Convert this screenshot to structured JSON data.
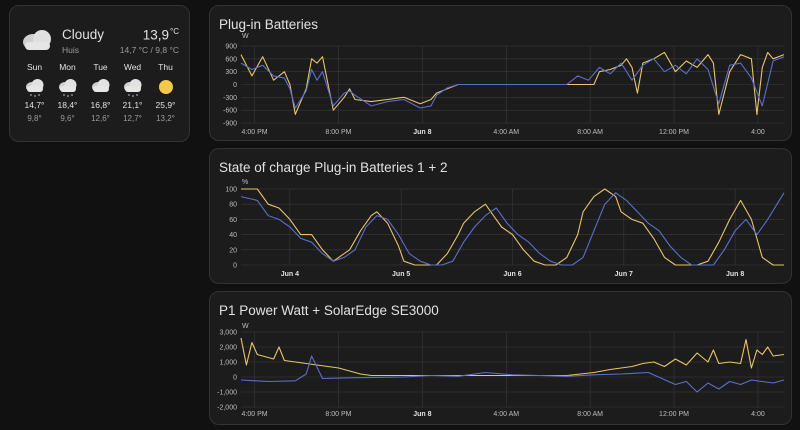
{
  "colors": {
    "yellow": "#e9c46a",
    "blue": "#5a6fcc",
    "grid": "#3a3a3a"
  },
  "weather": {
    "condition": "Cloudy",
    "location": "Huis",
    "temperature": "13,9",
    "unit": "°C",
    "high_low": "14,7 °C / 9,8 °C",
    "forecast": [
      {
        "day": "Sun",
        "icon": "snowy-cloud-icon",
        "high": "14,7°",
        "low": "9,8°"
      },
      {
        "day": "Mon",
        "icon": "snowy-cloud-icon",
        "high": "18,4°",
        "low": "9,6°"
      },
      {
        "day": "Tue",
        "icon": "cloudy-icon",
        "high": "16,8°",
        "low": "12,6°"
      },
      {
        "day": "Wed",
        "icon": "snowy-cloud-icon",
        "high": "21,1°",
        "low": "12,7°"
      },
      {
        "day": "Thu",
        "icon": "sunny-icon",
        "high": "25,9°",
        "low": "13,2°"
      }
    ]
  },
  "charts": [
    {
      "title": "Plug-in Batteries"
    },
    {
      "title": "State of charge Plug-in Batteries 1 + 2"
    },
    {
      "title": "P1 Power Watt + SolarEdge SE3000"
    }
  ],
  "chart_data": [
    {
      "type": "line",
      "unit": "W",
      "ylim": [
        -900,
        900
      ],
      "yticks": [
        "900",
        "600",
        "300",
        "0",
        "-300",
        "-600",
        "-900"
      ],
      "xticks": [
        {
          "label": "4:00 PM"
        },
        {
          "label": "8:00 PM"
        },
        {
          "label": "Jun 8",
          "bold": true
        },
        {
          "label": "4:00 AM"
        },
        {
          "label": "8:00 AM"
        },
        {
          "label": "12:00 PM"
        },
        {
          "label": "4:00"
        }
      ],
      "series": [
        {
          "color": "yellow",
          "x": [
            0,
            0.02,
            0.04,
            0.06,
            0.08,
            0.09,
            0.1,
            0.12,
            0.13,
            0.14,
            0.15,
            0.17,
            0.19,
            0.2,
            0.21,
            0.24,
            0.27,
            0.3,
            0.33,
            0.35,
            0.36,
            0.38,
            0.4,
            0.45,
            0.5,
            0.55,
            0.6,
            0.63,
            0.65,
            0.66,
            0.68,
            0.7,
            0.71,
            0.72,
            0.73,
            0.74,
            0.76,
            0.78,
            0.8,
            0.82,
            0.84,
            0.86,
            0.87,
            0.88,
            0.9,
            0.92,
            0.94,
            0.95,
            0.96,
            0.97,
            0.98,
            1.0
          ],
          "y": [
            700,
            200,
            650,
            100,
            300,
            0,
            -700,
            -100,
            600,
            500,
            650,
            -600,
            -300,
            -100,
            -350,
            -400,
            -350,
            -300,
            -450,
            -350,
            -200,
            -100,
            0,
            0,
            0,
            0,
            0,
            0,
            0,
            300,
            350,
            450,
            600,
            400,
            -200,
            500,
            600,
            750,
            300,
            550,
            400,
            700,
            500,
            -700,
            300,
            700,
            600,
            -700,
            400,
            750,
            600,
            700
          ]
        },
        {
          "color": "blue",
          "x": [
            0,
            0.02,
            0.04,
            0.06,
            0.08,
            0.09,
            0.1,
            0.12,
            0.13,
            0.14,
            0.15,
            0.17,
            0.19,
            0.2,
            0.21,
            0.24,
            0.27,
            0.3,
            0.33,
            0.35,
            0.36,
            0.38,
            0.4,
            0.45,
            0.5,
            0.55,
            0.6,
            0.62,
            0.64,
            0.66,
            0.68,
            0.7,
            0.72,
            0.74,
            0.76,
            0.78,
            0.8,
            0.82,
            0.84,
            0.86,
            0.88,
            0.9,
            0.92,
            0.94,
            0.96,
            0.98,
            1.0
          ],
          "y": [
            500,
            350,
            450,
            200,
            150,
            -100,
            -550,
            -150,
            350,
            100,
            300,
            -500,
            -200,
            -150,
            -250,
            -500,
            -400,
            -350,
            -550,
            -500,
            -250,
            -80,
            0,
            0,
            0,
            0,
            0,
            200,
            100,
            400,
            250,
            500,
            100,
            450,
            600,
            300,
            450,
            250,
            600,
            350,
            -450,
            450,
            500,
            150,
            -500,
            550,
            650
          ]
        }
      ]
    },
    {
      "type": "line",
      "unit": "%",
      "ylim": [
        0,
        100
      ],
      "yticks": [
        "100",
        "80",
        "60",
        "40",
        "20",
        "0"
      ],
      "xticks": [
        {
          "label": "Jun 4",
          "bold": true
        },
        {
          "label": "Jun 5",
          "bold": true
        },
        {
          "label": "Jun 6",
          "bold": true
        },
        {
          "label": "Jun 7",
          "bold": true
        },
        {
          "label": "Jun 8",
          "bold": true
        }
      ],
      "series": [
        {
          "color": "yellow",
          "x": [
            0,
            0.03,
            0.05,
            0.07,
            0.09,
            0.11,
            0.13,
            0.15,
            0.17,
            0.19,
            0.2,
            0.22,
            0.24,
            0.25,
            0.27,
            0.29,
            0.3,
            0.32,
            0.34,
            0.36,
            0.38,
            0.4,
            0.41,
            0.43,
            0.45,
            0.47,
            0.48,
            0.5,
            0.52,
            0.54,
            0.56,
            0.58,
            0.6,
            0.62,
            0.63,
            0.65,
            0.67,
            0.69,
            0.7,
            0.72,
            0.74,
            0.76,
            0.78,
            0.8,
            0.82,
            0.84,
            0.86,
            0.88,
            0.9,
            0.92,
            0.94,
            0.96,
            0.98,
            1.0
          ],
          "y": [
            100,
            100,
            80,
            75,
            60,
            40,
            40,
            20,
            5,
            15,
            20,
            45,
            65,
            70,
            55,
            25,
            5,
            0,
            0,
            0,
            15,
            40,
            55,
            70,
            80,
            60,
            50,
            40,
            20,
            5,
            0,
            0,
            10,
            40,
            70,
            90,
            100,
            90,
            70,
            60,
            55,
            35,
            10,
            0,
            0,
            0,
            5,
            30,
            60,
            85,
            60,
            10,
            0,
            0
          ]
        },
        {
          "color": "blue",
          "x": [
            0,
            0.03,
            0.05,
            0.07,
            0.09,
            0.11,
            0.13,
            0.15,
            0.17,
            0.19,
            0.21,
            0.23,
            0.25,
            0.27,
            0.29,
            0.31,
            0.33,
            0.35,
            0.37,
            0.39,
            0.41,
            0.43,
            0.45,
            0.47,
            0.49,
            0.51,
            0.53,
            0.55,
            0.57,
            0.59,
            0.61,
            0.63,
            0.65,
            0.67,
            0.69,
            0.71,
            0.73,
            0.75,
            0.77,
            0.79,
            0.81,
            0.83,
            0.85,
            0.87,
            0.89,
            0.91,
            0.93,
            0.95,
            0.97,
            1.0
          ],
          "y": [
            90,
            85,
            65,
            60,
            50,
            35,
            30,
            15,
            5,
            10,
            20,
            50,
            65,
            60,
            40,
            15,
            5,
            0,
            0,
            5,
            30,
            50,
            65,
            75,
            55,
            40,
            30,
            15,
            5,
            0,
            0,
            10,
            45,
            80,
            95,
            85,
            70,
            55,
            45,
            25,
            10,
            0,
            0,
            0,
            20,
            45,
            60,
            40,
            60,
            95
          ]
        }
      ]
    },
    {
      "type": "line",
      "unit": "W",
      "ylim": [
        -2000,
        3000
      ],
      "yticks": [
        "3,000",
        "2,000",
        "1,000",
        "0",
        "-1,000",
        "-2,000"
      ],
      "xticks": [
        {
          "label": "4:00 PM"
        },
        {
          "label": "8:00 PM"
        },
        {
          "label": "Jun 8",
          "bold": true
        },
        {
          "label": "4:00 AM"
        },
        {
          "label": "8:00 AM"
        },
        {
          "label": "12:00 PM"
        },
        {
          "label": "4:00"
        }
      ],
      "series": [
        {
          "color": "yellow",
          "x": [
            0,
            0.01,
            0.02,
            0.03,
            0.04,
            0.06,
            0.07,
            0.08,
            0.1,
            0.12,
            0.14,
            0.16,
            0.18,
            0.2,
            0.22,
            0.24,
            0.3,
            0.4,
            0.5,
            0.6,
            0.65,
            0.68,
            0.7,
            0.72,
            0.74,
            0.76,
            0.78,
            0.8,
            0.82,
            0.84,
            0.86,
            0.87,
            0.88,
            0.9,
            0.92,
            0.93,
            0.94,
            0.95,
            0.96,
            0.97,
            0.98,
            1.0
          ],
          "y": [
            2600,
            800,
            2300,
            1500,
            1400,
            1200,
            2000,
            1100,
            1000,
            900,
            800,
            700,
            600,
            400,
            200,
            100,
            100,
            100,
            100,
            100,
            300,
            500,
            600,
            700,
            900,
            1000,
            700,
            1200,
            800,
            1600,
            1000,
            1800,
            900,
            1000,
            900,
            2500,
            600,
            1800,
            1500,
            2000,
            1400,
            1500
          ]
        },
        {
          "color": "blue",
          "x": [
            0,
            0.05,
            0.1,
            0.12,
            0.13,
            0.15,
            0.2,
            0.3,
            0.35,
            0.4,
            0.45,
            0.5,
            0.55,
            0.6,
            0.65,
            0.7,
            0.75,
            0.8,
            0.82,
            0.84,
            0.86,
            0.88,
            0.9,
            0.92,
            0.94,
            0.96,
            0.98,
            1.0
          ],
          "y": [
            -200,
            -300,
            -250,
            200,
            1400,
            -100,
            -50,
            0,
            100,
            50,
            300,
            150,
            100,
            50,
            150,
            200,
            300,
            -500,
            -300,
            -1000,
            -400,
            -800,
            -300,
            -500,
            -200,
            -300,
            -400,
            -200
          ]
        }
      ]
    }
  ]
}
